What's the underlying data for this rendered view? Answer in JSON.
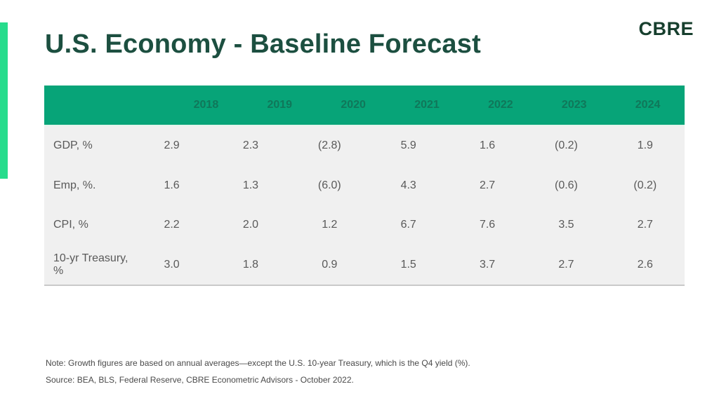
{
  "header": {
    "title": "U.S. Economy - Baseline Forecast"
  },
  "logo": {
    "text": "CBRE"
  },
  "table": {
    "columns": [
      "2018",
      "2019",
      "2020",
      "2021",
      "2022",
      "2023",
      "2024"
    ],
    "rows": [
      {
        "label": "GDP, %",
        "values": [
          "2.9",
          "2.3",
          "(2.8)",
          "5.9",
          "1.6",
          "(0.2)",
          "1.9"
        ]
      },
      {
        "label": "Emp, %.",
        "values": [
          "1.6",
          "1.3",
          "(6.0)",
          "4.3",
          "2.7",
          "(0.6)",
          "(0.2)"
        ]
      },
      {
        "label": "CPI, %",
        "values": [
          "2.2",
          "2.0",
          "1.2",
          "6.7",
          "7.6",
          "3.5",
          "2.7"
        ]
      },
      {
        "label": "10-yr Treasury, %",
        "values": [
          "3.0",
          "1.8",
          "0.9",
          "1.5",
          "3.7",
          "2.7",
          "2.6"
        ]
      }
    ]
  },
  "footer": {
    "note": "Note: Growth figures are based on annual averages—except the U.S. 10-year Treasury, which is the Q4 yield (%).",
    "source": "Source: BEA, BLS, Federal Reserve, CBRE Econometric Advisors - October 2022."
  },
  "colors": {
    "header_bar_green": "#07a478",
    "accent_bar_green": "#27dc8c",
    "title_dark_green": "#1c4f40",
    "logo_dark_green": "#173f2e",
    "table_body_gray": "#f0f0f0",
    "cell_text_gray": "#595959"
  },
  "chart_data": {
    "type": "table",
    "title": "U.S. Economy - Baseline Forecast",
    "categories": [
      "2018",
      "2019",
      "2020",
      "2021",
      "2022",
      "2023",
      "2024"
    ],
    "series": [
      {
        "name": "GDP, %",
        "values": [
          2.9,
          2.3,
          -2.8,
          5.9,
          1.6,
          -0.2,
          1.9
        ]
      },
      {
        "name": "Emp, %.",
        "values": [
          1.6,
          1.3,
          -6.0,
          4.3,
          2.7,
          -0.6,
          -0.2
        ]
      },
      {
        "name": "CPI, %",
        "values": [
          2.2,
          2.0,
          1.2,
          6.7,
          7.6,
          3.5,
          2.7
        ]
      },
      {
        "name": "10-yr Treasury, %",
        "values": [
          3.0,
          1.8,
          0.9,
          1.5,
          3.7,
          2.7,
          2.6
        ]
      }
    ],
    "value_format": "negatives shown in parentheses",
    "note": "Note: Growth figures are based on annual averages—except the U.S. 10-year Treasury, which is the Q4 yield (%).",
    "source": "Source: BEA, BLS, Federal Reserve, CBRE Econometric Advisors - October 2022."
  }
}
